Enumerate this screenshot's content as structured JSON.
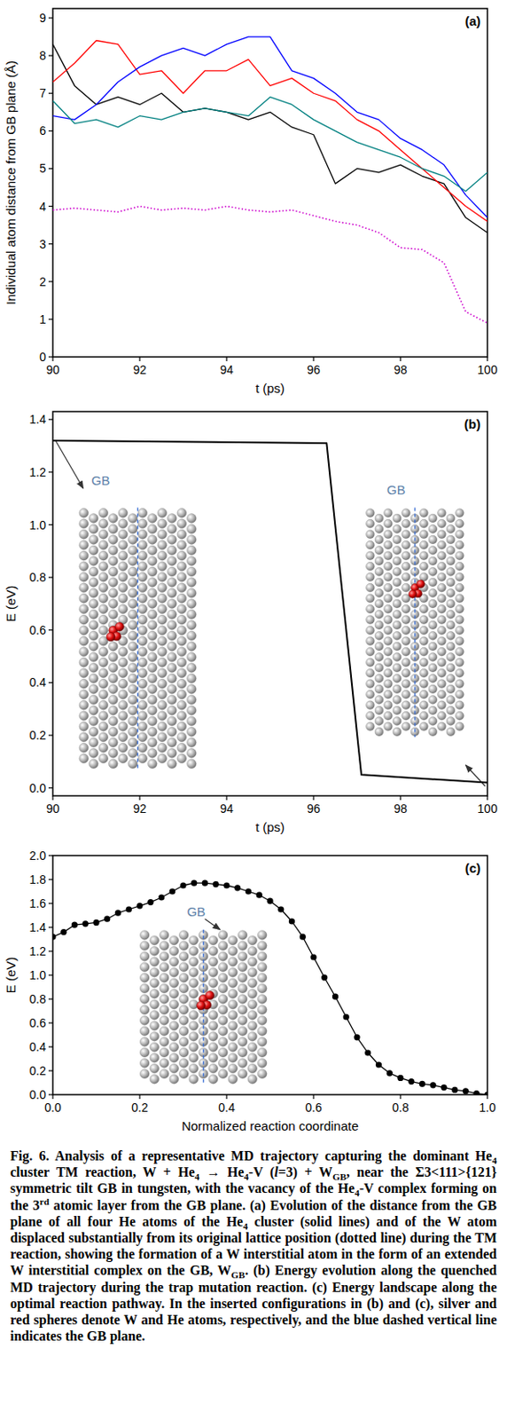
{
  "chart_data": [
    {
      "type": "line",
      "title": "(a)",
      "xlabel": "t (ps)",
      "ylabel": "Individual atom distance from GB plane (Å)",
      "x": [
        90,
        90.5,
        91,
        91.5,
        92,
        92.5,
        93,
        93.5,
        94,
        94.5,
        95,
        95.5,
        96,
        96.5,
        97,
        97.5,
        98,
        98.5,
        99,
        99.5,
        100
      ],
      "series": [
        {
          "color": "#000000",
          "line_style": "solid",
          "values": [
            8.3,
            7.2,
            6.7,
            6.9,
            6.7,
            7.0,
            6.5,
            6.6,
            6.5,
            6.3,
            6.5,
            6.1,
            5.9,
            4.6,
            5.0,
            4.9,
            5.1,
            4.8,
            4.6,
            3.7,
            3.3
          ]
        },
        {
          "color": "#ff0000",
          "line_style": "solid",
          "values": [
            7.3,
            7.8,
            8.4,
            8.3,
            7.5,
            7.6,
            7.0,
            7.6,
            7.6,
            7.9,
            7.2,
            7.4,
            7.0,
            6.8,
            6.3,
            6.0,
            5.5,
            5.0,
            4.5,
            4.0,
            3.6
          ]
        },
        {
          "color": "#0000ff",
          "line_style": "solid",
          "values": [
            6.4,
            6.3,
            6.7,
            7.3,
            7.7,
            8.0,
            8.2,
            8.0,
            8.3,
            8.5,
            8.5,
            7.6,
            7.4,
            7.0,
            6.5,
            6.3,
            5.8,
            5.5,
            5.1,
            4.3,
            3.7
          ]
        },
        {
          "color": "#008080",
          "line_style": "solid",
          "values": [
            6.8,
            6.2,
            6.3,
            6.1,
            6.4,
            6.3,
            6.5,
            6.6,
            6.5,
            6.4,
            6.9,
            6.7,
            6.3,
            6.0,
            5.7,
            5.5,
            5.3,
            5.0,
            4.8,
            4.4,
            4.9
          ]
        },
        {
          "color": "#cc00cc",
          "line_style": "dotted",
          "values": [
            3.9,
            3.95,
            3.9,
            3.85,
            4.0,
            3.9,
            3.95,
            3.9,
            4.0,
            3.9,
            3.85,
            3.9,
            3.75,
            3.6,
            3.5,
            3.3,
            2.9,
            2.85,
            2.5,
            1.2,
            0.9
          ]
        }
      ],
      "xlim": [
        90,
        100
      ],
      "ylim": [
        0,
        9.25
      ],
      "xticks": [
        90,
        92,
        94,
        96,
        98,
        100
      ],
      "yticks": [
        0,
        1,
        2,
        3,
        4,
        5,
        6,
        7,
        8,
        9
      ]
    },
    {
      "type": "line",
      "title": "(b)",
      "xlabel": "t (ps)",
      "ylabel": "E (eV)",
      "annotations": [
        "GB",
        "GB"
      ],
      "x": [
        90,
        96.3,
        97.1,
        100
      ],
      "series": [
        {
          "color": "#000000",
          "line_style": "solid",
          "values": [
            1.32,
            1.31,
            0.05,
            0.02
          ]
        }
      ],
      "xlim": [
        90,
        100
      ],
      "ylim": [
        -0.03,
        1.43
      ],
      "xticks": [
        90,
        92,
        94,
        96,
        98,
        100
      ],
      "yticks": [
        {
          "value": 0,
          "label": "0.0"
        },
        {
          "value": 0.2,
          "label": "0.2"
        },
        {
          "value": 0.4,
          "label": "0.4"
        },
        {
          "value": 0.6,
          "label": "0.6"
        },
        {
          "value": 0.8,
          "label": "0.8"
        },
        {
          "value": 1.0,
          "label": "1.0"
        },
        {
          "value": 1.2,
          "label": "1.2"
        },
        {
          "value": 1.4,
          "label": "1.4"
        }
      ]
    },
    {
      "type": "line",
      "title": "(c)",
      "xlabel": "Normalized reaction coordinate",
      "ylabel": "E (eV)",
      "annotations": [
        "GB"
      ],
      "x": [
        0,
        0.025,
        0.05,
        0.075,
        0.1,
        0.125,
        0.15,
        0.175,
        0.2,
        0.225,
        0.25,
        0.275,
        0.3,
        0.325,
        0.35,
        0.375,
        0.4,
        0.425,
        0.45,
        0.475,
        0.5,
        0.525,
        0.55,
        0.575,
        0.6,
        0.625,
        0.65,
        0.675,
        0.7,
        0.725,
        0.75,
        0.775,
        0.8,
        0.825,
        0.85,
        0.875,
        0.9,
        0.925,
        0.95,
        0.975,
        1.0
      ],
      "series": [
        {
          "color": "#000000",
          "line_style": "solid",
          "marker": "circle",
          "values": [
            1.32,
            1.36,
            1.42,
            1.43,
            1.44,
            1.47,
            1.52,
            1.55,
            1.58,
            1.61,
            1.65,
            1.7,
            1.75,
            1.77,
            1.77,
            1.76,
            1.75,
            1.73,
            1.7,
            1.67,
            1.62,
            1.55,
            1.45,
            1.32,
            1.15,
            0.98,
            0.82,
            0.65,
            0.48,
            0.35,
            0.25,
            0.18,
            0.14,
            0.11,
            0.09,
            0.08,
            0.06,
            0.04,
            0.03,
            0.01,
            0.0
          ]
        }
      ],
      "xlim": [
        0,
        1
      ],
      "ylim": [
        0,
        2
      ],
      "xticks": [
        {
          "value": 0,
          "label": "0.0"
        },
        {
          "value": 0.2,
          "label": "0.2"
        },
        {
          "value": 0.4,
          "label": "0.4"
        },
        {
          "value": 0.6,
          "label": "0.6"
        },
        {
          "value": 0.8,
          "label": "0.8"
        },
        {
          "value": 1.0,
          "label": "1.0"
        }
      ],
      "yticks": [
        {
          "value": 0,
          "label": "0.0"
        },
        {
          "value": 0.2,
          "label": "0.2"
        },
        {
          "value": 0.4,
          "label": "0.4"
        },
        {
          "value": 0.6,
          "label": "0.6"
        },
        {
          "value": 0.8,
          "label": "0.8"
        },
        {
          "value": 1.0,
          "label": "1.0"
        },
        {
          "value": 1.2,
          "label": "1.2"
        },
        {
          "value": 1.4,
          "label": "1.4"
        },
        {
          "value": 1.6,
          "label": "1.6"
        },
        {
          "value": 1.8,
          "label": "1.8"
        },
        {
          "value": 2.0,
          "label": "2.0"
        }
      ]
    }
  ],
  "caption": {
    "runs": [
      {
        "text": "Fig. 6.  Analysis of a representative MD trajectory capturing the dominant He"
      },
      {
        "text": "4",
        "style": "sub"
      },
      {
        "text": " cluster TM reaction, W + He"
      },
      {
        "text": "4",
        "style": "sub"
      },
      {
        "text": " → He"
      },
      {
        "text": "4",
        "style": "sub"
      },
      {
        "text": "-V ("
      },
      {
        "text": "l",
        "style": "i"
      },
      {
        "text": "=3) + W"
      },
      {
        "text": "GB",
        "style": "sub"
      },
      {
        "text": ", near the Σ3<111>{121} symmetric tilt GB in tungsten, with the vacancy of the He"
      },
      {
        "text": "4",
        "style": "sub"
      },
      {
        "text": "-V complex forming on the 3"
      },
      {
        "text": "rd",
        "style": "sup"
      },
      {
        "text": " atomic layer from the GB plane. (a) Evolution of the distance from the GB plane of all four He atoms of the He"
      },
      {
        "text": "4",
        "style": "sub"
      },
      {
        "text": " cluster (solid lines) and of the W atom displaced substantially from its original lattice position (dotted line) during the TM reaction, showing the formation of a W interstitial atom in the form of an extended W interstitial complex on the GB, W"
      },
      {
        "text": "GB",
        "style": "sub"
      },
      {
        "text": ". (b) Energy evolution along the quenched MD trajectory during the trap mutation reaction. (c) Energy landscape along the optimal reaction pathway. In the inserted configurations in (b) and (c), silver and red spheres denote W and He atoms, respectively, and the blue dashed vertical line indicates the GB plane."
      }
    ]
  }
}
